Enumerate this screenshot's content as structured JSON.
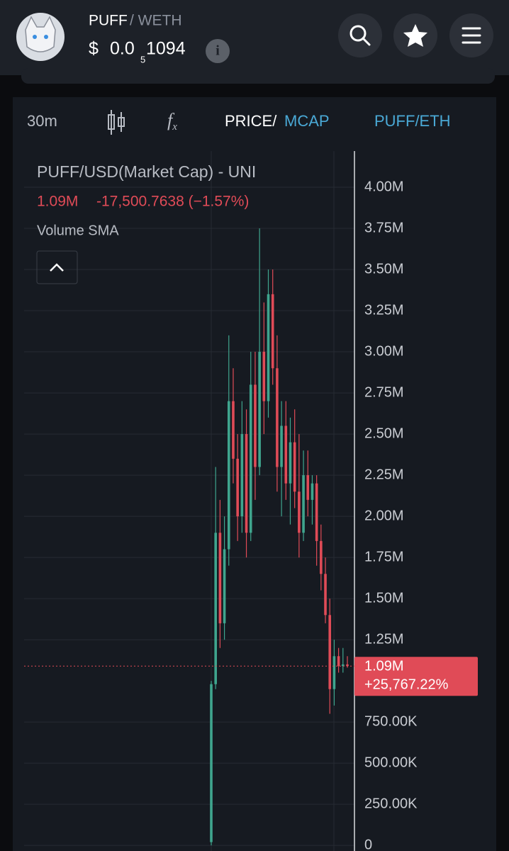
{
  "header": {
    "base": "PUFF",
    "quote": "/ WETH",
    "price_symbol": "$",
    "price_lead": "0.0",
    "price_zeros": "5",
    "price_tail": "1094"
  },
  "toolbar": {
    "interval": "30m",
    "price": "PRICE/",
    "mcap": "MCAP",
    "pair": "PUFF/ETH"
  },
  "chart_data": {
    "type": "candlestick",
    "title": "PUFF/USD(Market Cap) - UNI",
    "legend_change": "-17,500.7638 (−1.57%)",
    "indicator": "Volume SMA",
    "up_color": "#3fa58e",
    "down_color": "#e04b57",
    "open": [
      20000,
      980000,
      1900000,
      1350000,
      1800000,
      2700000,
      2350000,
      2000000,
      2500000,
      1900000,
      2800000,
      2300000,
      3000000,
      2700000,
      3350000,
      2900000,
      2300000,
      2550000,
      2200000,
      2450000,
      2150000,
      1900000,
      2250000,
      2100000,
      2200000,
      1850000,
      1650000,
      1400000,
      950000,
      1150000,
      1090000,
      1100000
    ],
    "high": [
      1000000,
      2300000,
      2100000,
      2000000,
      3100000,
      2900000,
      2500000,
      2700000,
      2650000,
      3000000,
      3000000,
      3750000,
      3300000,
      3500000,
      3500000,
      3100000,
      2700000,
      2700000,
      2600000,
      2650000,
      2500000,
      2400000,
      2400000,
      2250000,
      2250000,
      1950000,
      1750000,
      1500000,
      1250000,
      1200000,
      1200000,
      1150000
    ],
    "low": [
      0,
      950000,
      1200000,
      1250000,
      1700000,
      2200000,
      1850000,
      1900000,
      1750000,
      1850000,
      2100000,
      2250000,
      2500000,
      2600000,
      2800000,
      2150000,
      2000000,
      2100000,
      1950000,
      2050000,
      1750000,
      1850000,
      2000000,
      1950000,
      1700000,
      1550000,
      1350000,
      800000,
      850000,
      1050000,
      1050000,
      1080000
    ],
    "close": [
      980000,
      1900000,
      1350000,
      1800000,
      2700000,
      2350000,
      2000000,
      2500000,
      1900000,
      2800000,
      2300000,
      3000000,
      2700000,
      3350000,
      2900000,
      2300000,
      2550000,
      2200000,
      2450000,
      2150000,
      1900000,
      2250000,
      2100000,
      2200000,
      1850000,
      1650000,
      1400000,
      950000,
      1150000,
      1090000,
      1100000,
      1090000
    ],
    "ylim": [
      -34000,
      4220000
    ],
    "yticks": [
      0,
      {
        "value": 250000,
        "label": "250.00K"
      },
      {
        "value": 500000,
        "label": "500.00K"
      },
      {
        "value": 750000,
        "label": "750.00K"
      },
      {
        "value": 1250000,
        "label": "1.25M"
      },
      {
        "value": 1500000,
        "label": "1.50M"
      },
      {
        "value": 1750000,
        "label": "1.75M"
      },
      {
        "value": 2000000,
        "label": "2.00M"
      },
      {
        "value": 2250000,
        "label": "2.25M"
      },
      {
        "value": 2500000,
        "label": "2.50M"
      },
      {
        "value": 2750000,
        "label": "2.75M"
      },
      {
        "value": 3000000,
        "label": "3.00M"
      },
      {
        "value": 3250000,
        "label": "3.25M"
      },
      {
        "value": 3500000,
        "label": "3.50M"
      },
      {
        "value": 3750000,
        "label": "3.75M"
      },
      {
        "value": 4000000,
        "label": "4.00M"
      }
    ],
    "price_line": {
      "value": 1090000,
      "label": "1.09M"
    },
    "change_label": "+25,767.22%",
    "grid": true
  }
}
